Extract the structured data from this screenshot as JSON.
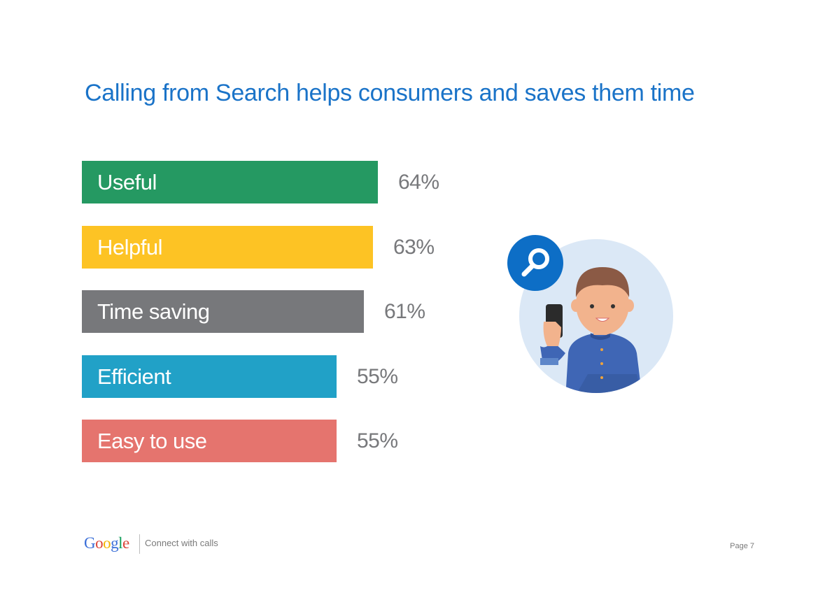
{
  "chart_data": {
    "type": "bar",
    "orientation": "horizontal",
    "title": "Calling from Search helps consumers and saves them time",
    "categories": [
      "Useful",
      "Helpful",
      "Time saving",
      "Efficient",
      "Easy to use"
    ],
    "values": [
      64,
      63,
      61,
      55,
      55
    ],
    "value_labels": [
      "64%",
      "63%",
      "61%",
      "55%",
      "55%"
    ],
    "colors": [
      "#259962",
      "#fdc324",
      "#77787b",
      "#21a1c7",
      "#e5746e"
    ],
    "xlim": [
      0,
      100
    ],
    "grid": false
  },
  "footer": {
    "logo_text": "Google",
    "tagline": "Connect with calls",
    "page_label": "Page 7"
  },
  "illustration": {
    "icon": "search-icon",
    "subject": "person-with-phone-icon"
  }
}
